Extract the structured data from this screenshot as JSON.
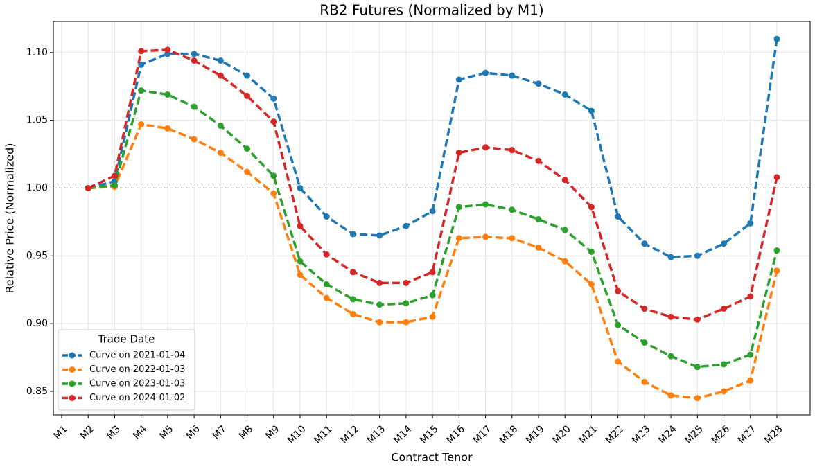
{
  "chart_data": {
    "type": "line",
    "title": "RB2 Futures (Normalized by M1)",
    "xlabel": "Contract Tenor",
    "ylabel": "Relative Price (Normalized)",
    "categories": [
      "M1",
      "M2",
      "M3",
      "M4",
      "M5",
      "M6",
      "M7",
      "M8",
      "M9",
      "M10",
      "M11",
      "M12",
      "M13",
      "M14",
      "M15",
      "M16",
      "M17",
      "M18",
      "M19",
      "M20",
      "M21",
      "M22",
      "M23",
      "M24",
      "M25",
      "M26",
      "M27",
      "M28"
    ],
    "series": [
      {
        "name": "Curve on 2021-01-04",
        "color": "#1f77b4",
        "values": [
          null,
          1.0,
          1.005,
          1.091,
          1.099,
          1.099,
          1.094,
          1.083,
          1.066,
          1.0,
          0.979,
          0.966,
          0.965,
          0.972,
          0.983,
          1.08,
          1.085,
          1.083,
          1.077,
          1.069,
          1.057,
          0.979,
          0.959,
          0.949,
          0.95,
          0.959,
          0.974,
          1.11
        ]
      },
      {
        "name": "Curve on 2022-01-03",
        "color": "#ff7f0e",
        "values": [
          null,
          1.0,
          1.001,
          1.047,
          1.044,
          1.036,
          1.026,
          1.012,
          0.996,
          0.936,
          0.919,
          0.907,
          0.901,
          0.901,
          0.905,
          0.963,
          0.964,
          0.963,
          0.956,
          0.946,
          0.929,
          0.872,
          0.857,
          0.847,
          0.845,
          0.85,
          0.858,
          0.939
        ]
      },
      {
        "name": "Curve on 2023-01-03",
        "color": "#2ca02c",
        "values": [
          null,
          1.0,
          1.002,
          1.072,
          1.069,
          1.06,
          1.046,
          1.029,
          1.009,
          0.946,
          0.929,
          0.918,
          0.914,
          0.915,
          0.921,
          0.986,
          0.988,
          0.984,
          0.977,
          0.969,
          0.953,
          0.899,
          0.886,
          0.876,
          0.868,
          0.87,
          0.877,
          0.954
        ]
      },
      {
        "name": "Curve on 2024-01-02",
        "color": "#d62728",
        "values": [
          null,
          1.0,
          1.009,
          1.101,
          1.102,
          1.094,
          1.083,
          1.068,
          1.049,
          0.972,
          0.951,
          0.938,
          0.93,
          0.93,
          0.938,
          1.026,
          1.03,
          1.028,
          1.02,
          1.006,
          0.986,
          0.924,
          0.911,
          0.905,
          0.903,
          0.911,
          0.92,
          1.008
        ]
      }
    ],
    "ylim": [
      0.8326,
      1.1229
    ],
    "yticks": [
      0.85,
      0.95,
      {
        "value": 0.9,
        "label": "0.90"
      },
      {
        "value": 1.0,
        "label": "1.00"
      },
      {
        "value": 1.05,
        "label": "1.05"
      },
      {
        "value": 1.1,
        "label": "1.10"
      }
    ],
    "hline": 1.0,
    "grid": true,
    "legend_title": "Trade Date",
    "legend_loc": "lower left"
  }
}
